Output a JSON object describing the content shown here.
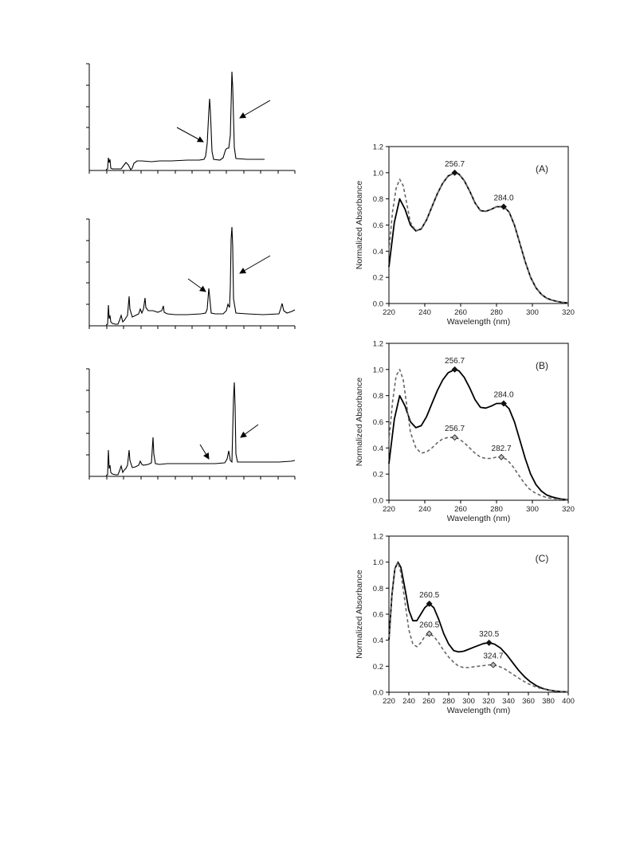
{
  "chart_data": [
    {
      "type": "line",
      "title": "",
      "xlabel": "",
      "ylabel": "",
      "note": "chromatogram, unlabeled axes",
      "arrows": 2,
      "peaks_x_frac": [
        0.59,
        0.7
      ]
    },
    {
      "type": "line",
      "title": "",
      "xlabel": "",
      "ylabel": "",
      "note": "chromatogram, unlabeled axes",
      "arrows": 2
    },
    {
      "type": "line",
      "title": "",
      "xlabel": "",
      "ylabel": "",
      "note": "chromatogram, unlabeled axes",
      "arrows": 2
    },
    {
      "type": "line",
      "panel_label": "(A)",
      "xlabel": "Wavelength (nm)",
      "ylabel": "Normalized Absorbance",
      "xlim": [
        220,
        320
      ],
      "ylim": [
        0.0,
        1.2
      ],
      "xticks": [
        "220",
        "240",
        "260",
        "280",
        "300",
        "320"
      ],
      "yticks": [
        "0.0",
        "0.2",
        "0.4",
        "0.6",
        "0.8",
        "1.0",
        "1.2"
      ],
      "series": [
        {
          "style": "solid",
          "x": [
            220,
            223,
            226,
            229,
            232,
            235,
            238,
            241,
            244,
            247,
            250,
            253,
            256.7,
            259,
            262,
            265,
            268,
            271,
            274,
            277,
            280,
            284,
            287,
            290,
            293,
            296,
            299,
            302,
            305,
            308,
            311,
            314,
            317,
            320
          ],
          "y": [
            0.28,
            0.62,
            0.8,
            0.72,
            0.6,
            0.555,
            0.57,
            0.64,
            0.74,
            0.84,
            0.92,
            0.975,
            1.0,
            0.99,
            0.94,
            0.86,
            0.77,
            0.71,
            0.705,
            0.72,
            0.74,
            0.74,
            0.7,
            0.6,
            0.46,
            0.32,
            0.2,
            0.12,
            0.07,
            0.04,
            0.025,
            0.015,
            0.008,
            0.004
          ]
        },
        {
          "style": "dashed",
          "x": [
            220,
            222,
            224,
            226,
            228,
            230,
            232,
            235,
            238,
            241,
            244,
            247,
            250,
            253,
            256.7,
            259,
            262,
            265,
            268,
            271,
            274,
            277,
            280,
            284,
            287,
            290,
            293,
            296,
            299,
            302,
            305,
            308,
            311,
            314,
            317,
            320
          ],
          "y": [
            0.4,
            0.7,
            0.88,
            0.95,
            0.9,
            0.76,
            0.62,
            0.555,
            0.57,
            0.64,
            0.74,
            0.84,
            0.92,
            0.975,
            1.0,
            0.99,
            0.94,
            0.86,
            0.77,
            0.71,
            0.705,
            0.72,
            0.74,
            0.74,
            0.7,
            0.6,
            0.46,
            0.32,
            0.2,
            0.12,
            0.07,
            0.04,
            0.025,
            0.015,
            0.008,
            0.004
          ]
        }
      ],
      "markers": [
        {
          "x": 256.7,
          "y": 1.0,
          "label": "256.7",
          "fill": "#111111"
        },
        {
          "x": 284.0,
          "y": 0.74,
          "label": "284.0",
          "fill": "#111111"
        }
      ]
    },
    {
      "type": "line",
      "panel_label": "(B)",
      "xlabel": "Wavelength (nm)",
      "ylabel": "Normalized Absorbance",
      "xlim": [
        220,
        320
      ],
      "ylim": [
        0.0,
        1.2
      ],
      "xticks": [
        "220",
        "240",
        "260",
        "280",
        "300",
        "320"
      ],
      "yticks": [
        "0.0",
        "0.2",
        "0.4",
        "0.6",
        "0.8",
        "1.0",
        "1.2"
      ],
      "series": [
        {
          "style": "solid",
          "x": [
            220,
            223,
            226,
            229,
            232,
            235,
            238,
            241,
            244,
            247,
            250,
            253,
            256.7,
            259,
            262,
            265,
            268,
            271,
            274,
            277,
            280,
            284,
            287,
            290,
            293,
            296,
            299,
            302,
            305,
            308,
            311,
            314,
            317,
            320
          ],
          "y": [
            0.28,
            0.62,
            0.8,
            0.72,
            0.6,
            0.555,
            0.57,
            0.64,
            0.74,
            0.84,
            0.92,
            0.975,
            1.0,
            0.99,
            0.94,
            0.86,
            0.77,
            0.71,
            0.705,
            0.72,
            0.74,
            0.74,
            0.7,
            0.6,
            0.46,
            0.32,
            0.2,
            0.12,
            0.07,
            0.04,
            0.025,
            0.015,
            0.008,
            0.004
          ]
        },
        {
          "style": "dashed",
          "x": [
            220,
            222,
            224,
            226,
            228,
            230,
            232,
            235,
            238,
            241,
            244,
            247,
            250,
            253,
            256.7,
            259,
            262,
            265,
            268,
            271,
            274,
            277,
            280,
            282.7,
            286,
            289,
            292,
            295,
            298,
            301,
            304,
            308,
            312,
            316,
            320
          ],
          "y": [
            0.45,
            0.75,
            0.95,
            1.0,
            0.92,
            0.72,
            0.52,
            0.4,
            0.36,
            0.37,
            0.4,
            0.44,
            0.47,
            0.48,
            0.48,
            0.47,
            0.44,
            0.4,
            0.36,
            0.33,
            0.32,
            0.32,
            0.33,
            0.33,
            0.31,
            0.26,
            0.2,
            0.14,
            0.09,
            0.06,
            0.04,
            0.02,
            0.012,
            0.006,
            0.003
          ]
        }
      ],
      "markers": [
        {
          "x": 256.7,
          "y": 1.0,
          "label": "256.7",
          "fill": "#111111"
        },
        {
          "x": 284.0,
          "y": 0.74,
          "label": "284.0",
          "fill": "#111111"
        },
        {
          "x": 256.7,
          "y": 0.48,
          "label": "256.7",
          "fill": "#bbbbbb"
        },
        {
          "x": 282.7,
          "y": 0.33,
          "label": "282.7",
          "fill": "#bbbbbb"
        }
      ]
    },
    {
      "type": "line",
      "panel_label": "(C)",
      "xlabel": "Wavelength (nm)",
      "ylabel": "Normalized Absorbance",
      "xlim": [
        220,
        400
      ],
      "ylim": [
        0.0,
        1.2
      ],
      "xticks": [
        "220",
        "240",
        "260",
        "280",
        "300",
        "320",
        "340",
        "360",
        "380",
        "400"
      ],
      "yticks": [
        "0.0",
        "0.2",
        "0.4",
        "0.6",
        "0.8",
        "1.0",
        "1.2"
      ],
      "series": [
        {
          "style": "solid",
          "x": [
            220,
            223,
            226,
            229,
            232,
            236,
            240,
            244,
            248,
            252,
            256,
            260.5,
            265,
            270,
            275,
            280,
            285,
            290,
            295,
            300,
            305,
            310,
            315,
            320.5,
            326,
            332,
            338,
            344,
            350,
            356,
            362,
            368,
            374,
            380,
            386,
            392,
            400
          ],
          "y": [
            0.4,
            0.75,
            0.95,
            1.0,
            0.96,
            0.8,
            0.63,
            0.55,
            0.55,
            0.6,
            0.65,
            0.68,
            0.65,
            0.56,
            0.45,
            0.37,
            0.32,
            0.31,
            0.315,
            0.33,
            0.345,
            0.36,
            0.375,
            0.38,
            0.37,
            0.34,
            0.29,
            0.23,
            0.17,
            0.12,
            0.08,
            0.05,
            0.03,
            0.018,
            0.01,
            0.005,
            0.002
          ]
        },
        {
          "style": "dashed",
          "x": [
            220,
            223,
            226,
            229,
            232,
            236,
            240,
            244,
            248,
            252,
            256,
            260.5,
            265,
            270,
            275,
            280,
            285,
            290,
            295,
            300,
            305,
            310,
            315,
            320,
            324.7,
            330,
            336,
            342,
            348,
            354,
            360,
            366,
            372,
            378,
            384,
            392,
            400
          ],
          "y": [
            0.38,
            0.75,
            0.95,
            1.0,
            0.92,
            0.7,
            0.48,
            0.37,
            0.35,
            0.38,
            0.43,
            0.45,
            0.43,
            0.38,
            0.32,
            0.27,
            0.23,
            0.2,
            0.19,
            0.19,
            0.195,
            0.2,
            0.205,
            0.21,
            0.21,
            0.2,
            0.18,
            0.15,
            0.12,
            0.09,
            0.065,
            0.045,
            0.03,
            0.02,
            0.012,
            0.006,
            0.003
          ]
        }
      ],
      "markers": [
        {
          "x": 260.5,
          "y": 0.68,
          "label": "260.5",
          "fill": "#111111"
        },
        {
          "x": 320.5,
          "y": 0.38,
          "label": "320.5",
          "fill": "#111111"
        },
        {
          "x": 260.5,
          "y": 0.45,
          "label": "260.5",
          "fill": "#bbbbbb"
        },
        {
          "x": 324.7,
          "y": 0.21,
          "label": "324.7",
          "fill": "#bbbbbb"
        }
      ]
    }
  ]
}
